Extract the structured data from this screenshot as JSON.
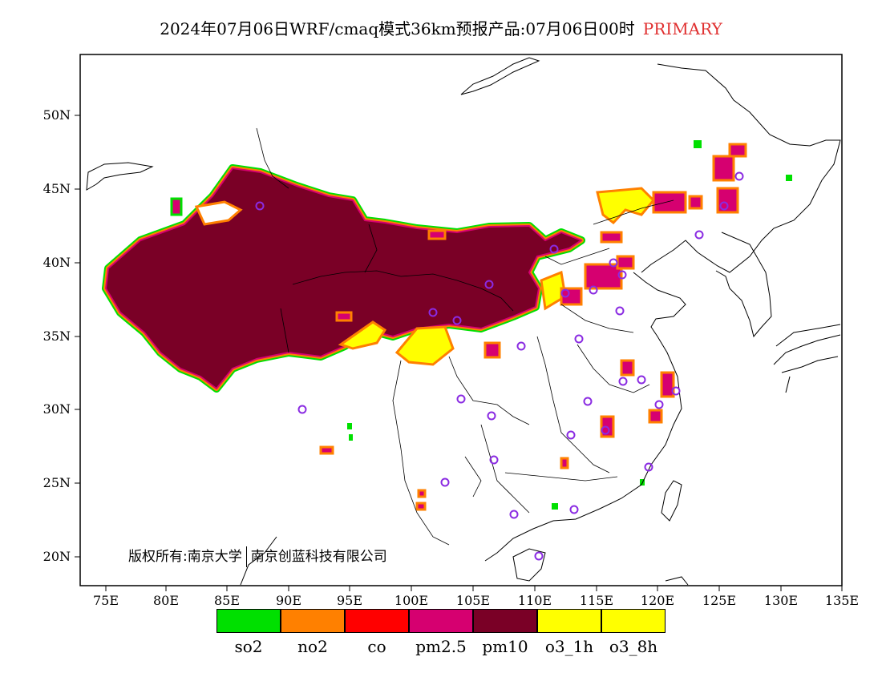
{
  "title": {
    "main": "2024年07月06日WRF/cmaq模式36km预报产品:07月06日00时",
    "tag": "PRIMARY",
    "tag_color": "#e03030"
  },
  "axes": {
    "y_labels": [
      "50N",
      "45N",
      "40N",
      "35N",
      "30N",
      "25N",
      "20N"
    ],
    "x_labels": [
      "75E",
      "80E",
      "85E",
      "90E",
      "95E",
      "100E",
      "105E",
      "110E",
      "115E",
      "120E",
      "125E",
      "130E",
      "135E"
    ],
    "lon_range": [
      72,
      135
    ],
    "lat_range": [
      18,
      54
    ]
  },
  "copyright": {
    "part1": "版权所有:南京大学",
    "part2": "南京创蓝科技有限公司"
  },
  "legend": [
    {
      "label": "so2",
      "color": "#00e000"
    },
    {
      "label": "no2",
      "color": "#ff8000"
    },
    {
      "label": "co",
      "color": "#ff0000"
    },
    {
      "label": "pm2.5",
      "color": "#d60070"
    },
    {
      "label": "pm10",
      "color": "#7a0026"
    },
    {
      "label": "o3_1h",
      "color": "#ffff00"
    },
    {
      "label": "o3_8h",
      "color": "#ffff00"
    }
  ],
  "station_color": "#8a2be2"
}
